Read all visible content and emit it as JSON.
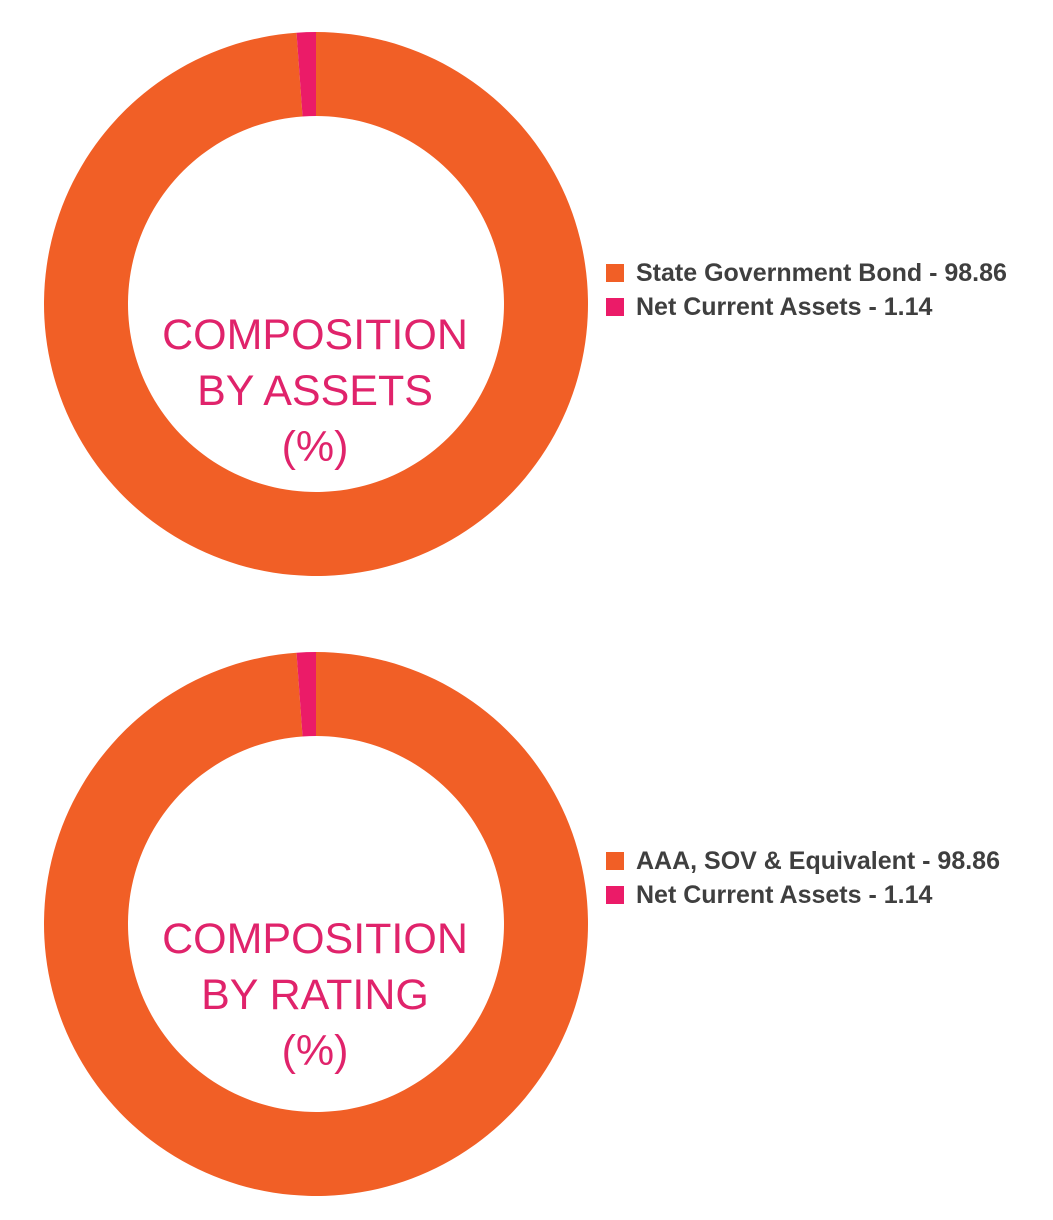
{
  "colors": {
    "primary": "#f15f26",
    "secondary": "#eb1b68",
    "title": "#e0236b",
    "legend_text": "#3f3f3f"
  },
  "chart_data": [
    {
      "type": "pie",
      "variant": "donut",
      "title_lines": [
        "COMPOSITION",
        "BY ASSETS",
        "(%)"
      ],
      "categories": [
        "State Government Bond",
        "Net Current Assets"
      ],
      "values": [
        98.86,
        1.14
      ],
      "colors": [
        "#f15f26",
        "#eb1b68"
      ],
      "legend_labels": [
        "State Government Bond - 98.86",
        "Net Current Assets - 1.14"
      ],
      "legend_position": "right"
    },
    {
      "type": "pie",
      "variant": "donut",
      "title_lines": [
        "COMPOSITION",
        "BY RATING",
        "(%)"
      ],
      "categories": [
        "AAA, SOV & Equivalent",
        "Net Current Assets"
      ],
      "values": [
        98.86,
        1.14
      ],
      "colors": [
        "#f15f26",
        "#eb1b68"
      ],
      "legend_labels": [
        "AAA, SOV & Equivalent - 98.86",
        "Net Current Assets - 1.14"
      ],
      "legend_position": "right"
    }
  ]
}
